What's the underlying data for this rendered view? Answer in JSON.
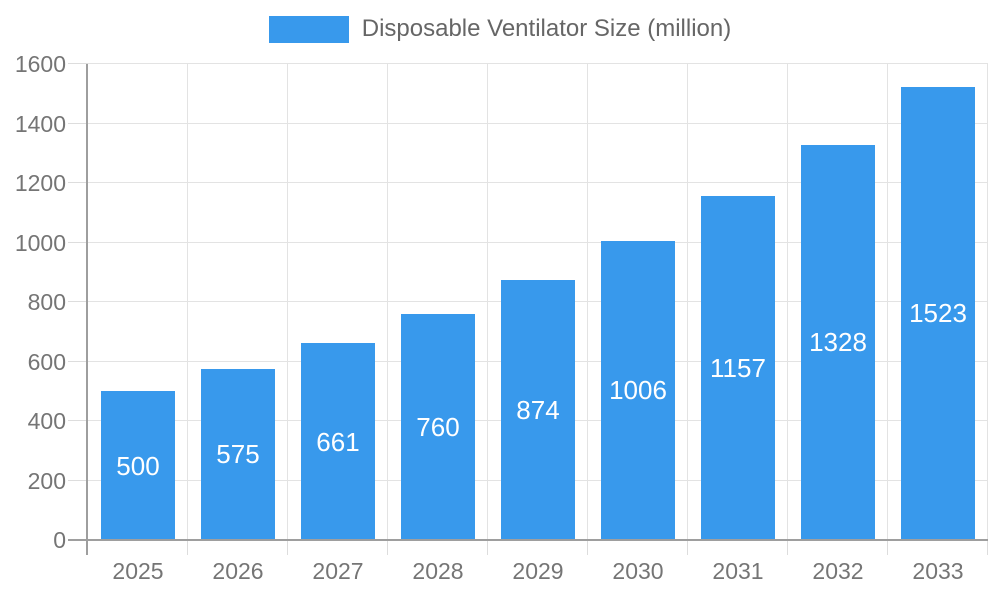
{
  "chart_data": {
    "type": "bar",
    "title": "Disposable Ventilator Size (million)",
    "categories": [
      "2025",
      "2026",
      "2027",
      "2028",
      "2029",
      "2030",
      "2031",
      "2032",
      "2033"
    ],
    "values": [
      500,
      575,
      661,
      760,
      874,
      1006,
      1157,
      1328,
      1523
    ],
    "series": [
      {
        "name": "Disposable Ventilator Size (million)",
        "values": [
          500,
          575,
          661,
          760,
          874,
          1006,
          1157,
          1328,
          1523
        ]
      }
    ],
    "xlabel": "",
    "ylabel": "",
    "ylim": [
      0,
      1600
    ],
    "yticks": [
      0,
      200,
      400,
      600,
      800,
      1000,
      1200,
      1400,
      1600
    ],
    "grid": true,
    "legend_position": "top",
    "bar_labels_shown": true,
    "colors": {
      "bar": "#3899EC",
      "bar_label": "#FFFFFF",
      "tick_text": "#757575",
      "title_text": "#666666",
      "gridline": "#E3E3E3",
      "tick_mark": "#DDDDDD",
      "axis_line": "#9E9E9E",
      "background": "#FFFFFF"
    }
  }
}
